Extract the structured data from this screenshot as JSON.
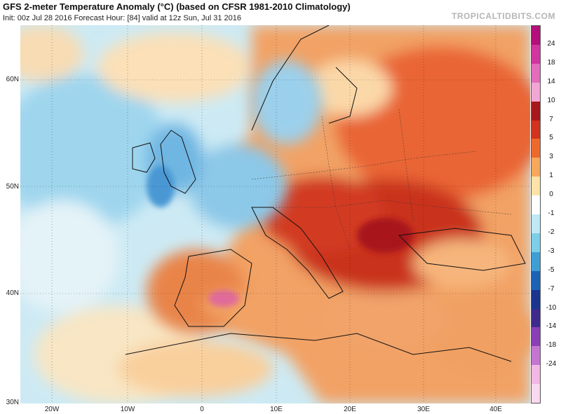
{
  "header": {
    "title": "GFS 2-meter Temperature Anomaly (°C) (based on CFSR 1981-2010 Climatology)",
    "subtitle": "Init: 00z Jul 28 2016   Forecast Hour: [84]   valid at 12z Sun, Jul 31 2016",
    "brand": "TROPICALTIDBITS.COM"
  },
  "axes": {
    "lat_labels": [
      "60N",
      "50N",
      "40N",
      "30N"
    ],
    "lon_labels": [
      "20W",
      "10W",
      "0",
      "10E",
      "20E",
      "30E",
      "40E"
    ]
  },
  "colorbar": {
    "labels": [
      "24",
      "18",
      "14",
      "10",
      "7",
      "5",
      "3",
      "1",
      "0",
      "-1",
      "-2",
      "-3",
      "-5",
      "-7",
      "-10",
      "-14",
      "-18",
      "-24"
    ],
    "colors": [
      "#b40f7a",
      "#d2359f",
      "#e36cbc",
      "#f2a6d5",
      "#a7181a",
      "#d2321e",
      "#ee6a2c",
      "#f8a85a",
      "#fde3a7",
      "#ffffff",
      "#bfe9f5",
      "#7ccfe8",
      "#3e9fd6",
      "#1c63b8",
      "#1a3590",
      "#3e2a8e",
      "#8a3fb6",
      "#c475d2",
      "#f2b7e4",
      "#f9d9ef"
    ]
  },
  "map_colors": {
    "ocean_cool": "#bfe5f2",
    "ocean_neutral": "#e8f5fb",
    "warm_mild": "#fbd5a0",
    "warm": "#f4a062",
    "hot": "#e0522a",
    "very_hot": "#b5231c",
    "cool": "#7fc4e6",
    "cold": "#3a8fd0"
  }
}
